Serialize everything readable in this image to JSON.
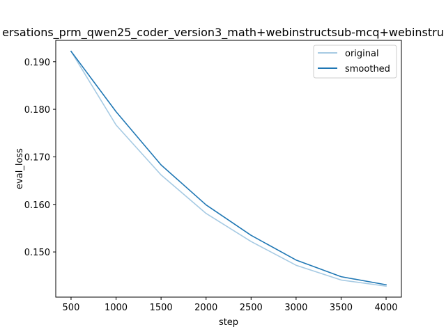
{
  "chart_data": {
    "type": "line",
    "title": "ersations_prm_qwen25_coder_version3_math+webinstructsub-mcq+webinstru",
    "xlabel": "step",
    "ylabel": "eval_loss",
    "x": [
      500,
      1000,
      1500,
      2000,
      2500,
      3000,
      3500,
      4000
    ],
    "xlim": [
      330,
      4170
    ],
    "ylim": [
      0.1405,
      0.1945
    ],
    "xticks": [
      "500",
      "1000",
      "1500",
      "2000",
      "2500",
      "3000",
      "3500",
      "4000"
    ],
    "yticks": [
      "0.150",
      "0.160",
      "0.170",
      "0.180",
      "0.190"
    ],
    "grid": false,
    "legend_position": "top-right",
    "series": [
      {
        "name": "original",
        "color": "#a6cae3",
        "values": [
          0.1922,
          0.1767,
          0.1662,
          0.1581,
          0.1522,
          0.1472,
          0.1441,
          0.1428
        ]
      },
      {
        "name": "smoothed",
        "color": "#1f77b4",
        "values": [
          0.1922,
          0.1795,
          0.1683,
          0.1599,
          0.1535,
          0.1483,
          0.1448,
          0.1431
        ]
      }
    ]
  }
}
